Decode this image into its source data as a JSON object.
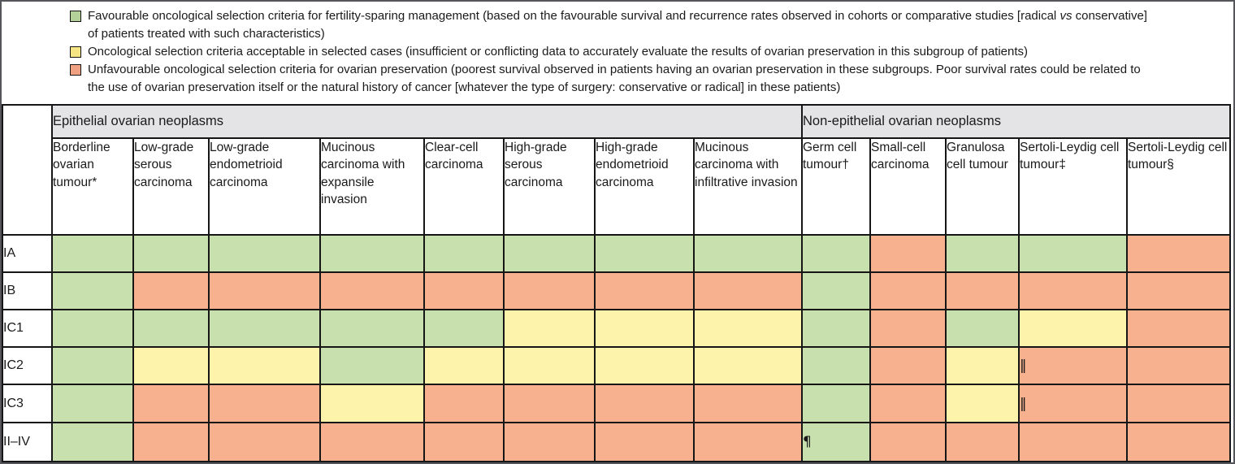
{
  "colors": {
    "F": "#c8dfae",
    "A": "#fdf3ab",
    "U": "#f7b18f",
    "group_header_bg": "#e4e4e6",
    "grid_border": "#161616"
  },
  "legend": {
    "items": [
      {
        "status_key": "F",
        "swatch_color": "#b5d19a",
        "line1_pre": "Favourable oncological selection criteria for fertility-sparing management (based on the favourable survival and recurrence rates observed in cohorts or comparative studies [radical ",
        "line1_italic": "vs",
        "line1_post": " conservative]",
        "line2": "of patients treated with such characteristics)"
      },
      {
        "status_key": "A",
        "swatch_color": "#f6e584",
        "line1": "Oncological selection criteria acceptable in selected cases (insufficient or conflicting data to accurately evaluate the results of ovarian preservation in this subgroup of patients)"
      },
      {
        "status_key": "U",
        "swatch_color": "#f0a184",
        "line1": "Unfavourable oncological selection criteria for ovarian preservation (poorest survival observed in patients having an ovarian preservation in these subgroups. Poor survival rates could be related to",
        "line2": "the use of ovarian preservation itself or the natural history of cancer [whatever the type of surgery: conservative or radical] in these patients)"
      }
    ]
  },
  "table": {
    "status_key": {
      "F": "Favourable oncological selection criteria",
      "A": "Oncological selection criteria acceptable in selected cases",
      "U": "Unfavourable oncological selection criteria"
    },
    "group_headers": [
      {
        "label": "Epithelial ovarian neoplasms",
        "span": 8
      },
      {
        "label": "Non-epithelial ovarian neoplasms",
        "span": 5
      }
    ],
    "columns": [
      {
        "label": "Borderline ovarian tumour*"
      },
      {
        "label": "Low-grade serous carcinoma"
      },
      {
        "label": "Low-grade endometrioid carcinoma"
      },
      {
        "label": "Mucinous carcinoma with expansile invasion"
      },
      {
        "label": "Clear-cell carcinoma"
      },
      {
        "label": "High-grade serous carcinoma"
      },
      {
        "label": "High-grade endometrioid carcinoma"
      },
      {
        "label": "Mucinous carcinoma with infiltrative invasion"
      },
      {
        "label": "Germ cell tumour†"
      },
      {
        "label": "Small-cell carcinoma"
      },
      {
        "label": "Granulosa cell tumour"
      },
      {
        "label": "Sertoli-Leydig cell tumour‡"
      },
      {
        "label": "Sertoli-Leydig cell tumour§"
      }
    ],
    "rows": [
      {
        "label": "IA",
        "cells": [
          "F",
          "F",
          "F",
          "F",
          "F",
          "F",
          "F",
          "F",
          "F",
          "U",
          "F",
          "F",
          "U"
        ],
        "symbols": {}
      },
      {
        "label": "IB",
        "cells": [
          "F",
          "U",
          "U",
          "U",
          "U",
          "U",
          "U",
          "U",
          "F",
          "U",
          "U",
          "U",
          "U"
        ],
        "symbols": {}
      },
      {
        "label": "IC1",
        "cells": [
          "F",
          "F",
          "F",
          "F",
          "F",
          "A",
          "A",
          "A",
          "F",
          "U",
          "F",
          "A",
          "U"
        ],
        "symbols": {}
      },
      {
        "label": "IC2",
        "cells": [
          "F",
          "A",
          "A",
          "F",
          "A",
          "A",
          "A",
          "A",
          "F",
          "U",
          "A",
          "U",
          "U"
        ],
        "symbols": {
          "11": "‖"
        }
      },
      {
        "label": "IC3",
        "cells": [
          "F",
          "U",
          "U",
          "A",
          "U",
          "U",
          "U",
          "U",
          "F",
          "U",
          "A",
          "U",
          "U"
        ],
        "symbols": {
          "11": "‖"
        }
      },
      {
        "label": "II–IV",
        "cells": [
          "F",
          "U",
          "U",
          "U",
          "U",
          "U",
          "U",
          "U",
          "F",
          "U",
          "U",
          "U",
          "U"
        ],
        "symbols": {
          "8": "¶"
        }
      }
    ]
  }
}
